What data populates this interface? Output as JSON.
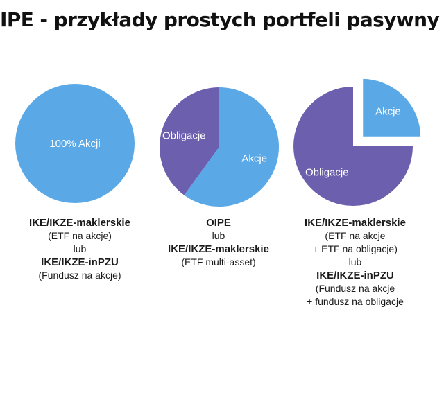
{
  "title": "IPE - przykłady prostych portfeli pasywny",
  "colors": {
    "stocks": "#5aa9e6",
    "bonds": "#6b5fae",
    "label": "#ffffff"
  },
  "chart_data": [
    {
      "type": "pie",
      "slices": [
        {
          "label": "100% Akcji",
          "value": 100,
          "color": "#5aa9e6",
          "exploded": false
        }
      ],
      "caption": [
        {
          "text": "IKE/IKZE-maklerskie",
          "bold": true
        },
        {
          "text": "(ETF na akcje)",
          "bold": false
        },
        {
          "text": "lub",
          "bold": false
        },
        {
          "text": "IKE/IKZE-inPZU",
          "bold": true
        },
        {
          "text": "(Fundusz na akcje)",
          "bold": false
        }
      ]
    },
    {
      "type": "pie",
      "slices": [
        {
          "label": "Akcje",
          "value": 60,
          "color": "#5aa9e6",
          "exploded": false
        },
        {
          "label": "Obligacje",
          "value": 40,
          "color": "#6b5fae",
          "exploded": false
        }
      ],
      "caption": [
        {
          "text": "OIPE",
          "bold": true
        },
        {
          "text": "lub",
          "bold": false
        },
        {
          "text": "IKE/IKZE-maklerskie",
          "bold": true
        },
        {
          "text": "(ETF multi-asset)",
          "bold": false
        }
      ]
    },
    {
      "type": "pie",
      "slices": [
        {
          "label": "Akcje",
          "value": 25,
          "color": "#5aa9e6",
          "exploded": true
        },
        {
          "label": "Obligacje",
          "value": 75,
          "color": "#6b5fae",
          "exploded": false
        }
      ],
      "caption": [
        {
          "text": "IKE/IKZE-maklerskie",
          "bold": true
        },
        {
          "text": "(ETF na akcje",
          "bold": false
        },
        {
          "text": "+ ETF na obligacje)",
          "bold": false
        },
        {
          "text": "lub",
          "bold": false
        },
        {
          "text": "IKE/IKZE-inPZU",
          "bold": true
        },
        {
          "text": "(Fundusz na akcje",
          "bold": false
        },
        {
          "text": "+ fundusz na obligacje",
          "bold": false
        }
      ]
    }
  ]
}
